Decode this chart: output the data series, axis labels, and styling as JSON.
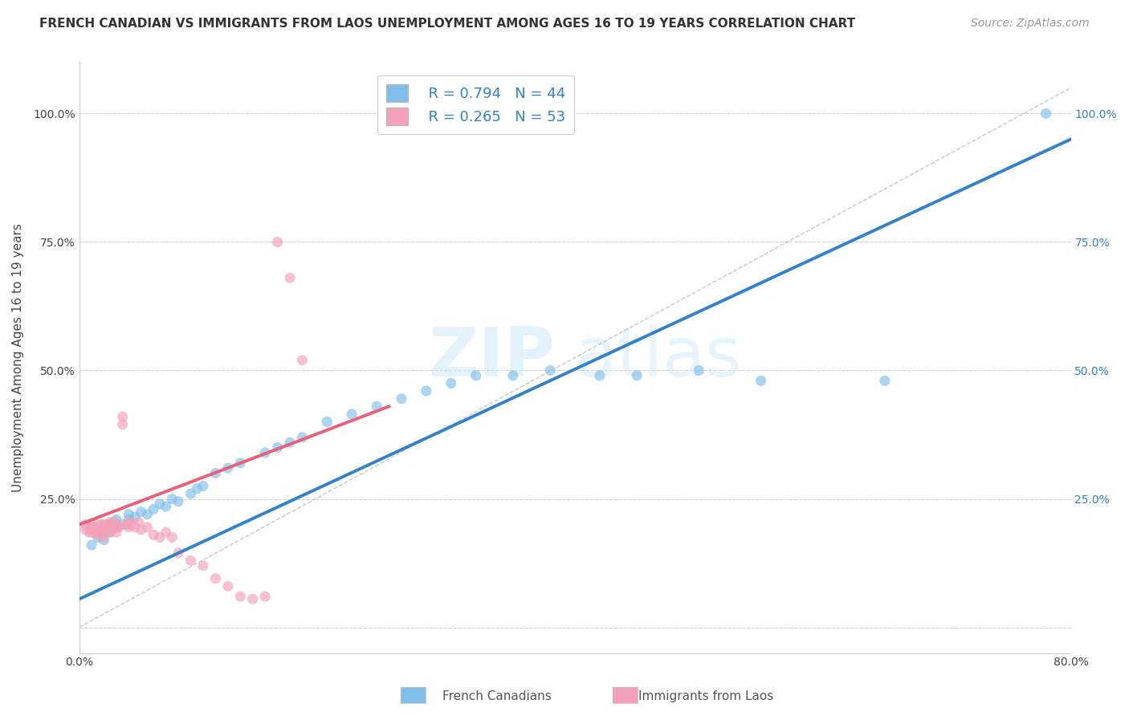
{
  "title": "FRENCH CANADIAN VS IMMIGRANTS FROM LAOS UNEMPLOYMENT AMONG AGES 16 TO 19 YEARS CORRELATION CHART",
  "source": "Source: ZipAtlas.com",
  "ylabel": "Unemployment Among Ages 16 to 19 years",
  "xlim": [
    0.0,
    0.8
  ],
  "ylim": [
    -0.05,
    1.1
  ],
  "x_tick_positions": [
    0.0,
    0.1,
    0.2,
    0.3,
    0.4,
    0.5,
    0.6,
    0.7,
    0.8
  ],
  "x_tick_labels": [
    "0.0%",
    "",
    "",
    "",
    "",
    "",
    "",
    "",
    "80.0%"
  ],
  "y_tick_positions": [
    0.0,
    0.25,
    0.5,
    0.75,
    1.0
  ],
  "y_tick_labels_left": [
    "",
    "25.0%",
    "50.0%",
    "75.0%",
    "100.0%"
  ],
  "y_tick_labels_right": [
    "",
    "25.0%",
    "50.0%",
    "75.0%",
    "100.0%"
  ],
  "legend_r1": "R = 0.794",
  "legend_n1": "N = 44",
  "legend_r2": "R = 0.265",
  "legend_n2": "N = 53",
  "legend_label1": "French Canadians",
  "legend_label2": "Immigrants from Laos",
  "blue_color": "#7fbfea",
  "blue_line_color": "#3381c8",
  "pink_color": "#f4a0b8",
  "pink_line_color": "#e8607a",
  "watermark_zip": "ZIP",
  "watermark_atlas": "atlas",
  "grid_color": "#cccccc",
  "background_color": "#ffffff",
  "title_fontsize": 11,
  "axis_label_fontsize": 11,
  "tick_fontsize": 10,
  "legend_fontsize": 13,
  "source_fontsize": 10,
  "blue_dots_x": [
    0.01,
    0.015,
    0.02,
    0.02,
    0.025,
    0.025,
    0.03,
    0.03,
    0.035,
    0.04,
    0.04,
    0.045,
    0.05,
    0.055,
    0.06,
    0.065,
    0.07,
    0.075,
    0.08,
    0.09,
    0.095,
    0.1,
    0.11,
    0.12,
    0.13,
    0.15,
    0.16,
    0.17,
    0.18,
    0.2,
    0.22,
    0.24,
    0.26,
    0.28,
    0.3,
    0.32,
    0.35,
    0.38,
    0.42,
    0.45,
    0.5,
    0.55,
    0.65,
    0.78
  ],
  "blue_dots_y": [
    0.16,
    0.175,
    0.17,
    0.19,
    0.185,
    0.2,
    0.195,
    0.21,
    0.2,
    0.21,
    0.22,
    0.215,
    0.225,
    0.22,
    0.23,
    0.24,
    0.235,
    0.25,
    0.245,
    0.26,
    0.27,
    0.275,
    0.3,
    0.31,
    0.32,
    0.34,
    0.35,
    0.36,
    0.37,
    0.4,
    0.415,
    0.43,
    0.445,
    0.46,
    0.475,
    0.49,
    0.49,
    0.5,
    0.49,
    0.49,
    0.5,
    0.48,
    0.48,
    1.0
  ],
  "pink_dots_x": [
    0.005,
    0.005,
    0.008,
    0.01,
    0.01,
    0.01,
    0.012,
    0.012,
    0.015,
    0.015,
    0.015,
    0.018,
    0.018,
    0.02,
    0.02,
    0.02,
    0.02,
    0.022,
    0.022,
    0.025,
    0.025,
    0.025,
    0.028,
    0.028,
    0.03,
    0.03,
    0.03,
    0.032,
    0.035,
    0.035,
    0.038,
    0.04,
    0.04,
    0.042,
    0.045,
    0.048,
    0.05,
    0.055,
    0.06,
    0.065,
    0.07,
    0.075,
    0.08,
    0.09,
    0.1,
    0.11,
    0.12,
    0.13,
    0.14,
    0.15,
    0.16,
    0.17,
    0.18
  ],
  "pink_dots_y": [
    0.19,
    0.2,
    0.185,
    0.195,
    0.2,
    0.185,
    0.19,
    0.195,
    0.2,
    0.185,
    0.18,
    0.19,
    0.2,
    0.175,
    0.185,
    0.195,
    0.2,
    0.19,
    0.2,
    0.185,
    0.2,
    0.205,
    0.195,
    0.205,
    0.185,
    0.195,
    0.2,
    0.195,
    0.395,
    0.41,
    0.2,
    0.195,
    0.205,
    0.2,
    0.195,
    0.205,
    0.19,
    0.195,
    0.18,
    0.175,
    0.185,
    0.175,
    0.145,
    0.13,
    0.12,
    0.095,
    0.08,
    0.06,
    0.055,
    0.06,
    0.75,
    0.68,
    0.52
  ],
  "blue_line_x": [
    0.0,
    0.8
  ],
  "blue_line_y": [
    0.055,
    0.95
  ],
  "pink_line_x": [
    0.0,
    0.25
  ],
  "pink_line_y": [
    0.2,
    0.43
  ],
  "diag_line_x": [
    0.0,
    0.8
  ],
  "diag_line_y": [
    0.0,
    1.05
  ]
}
